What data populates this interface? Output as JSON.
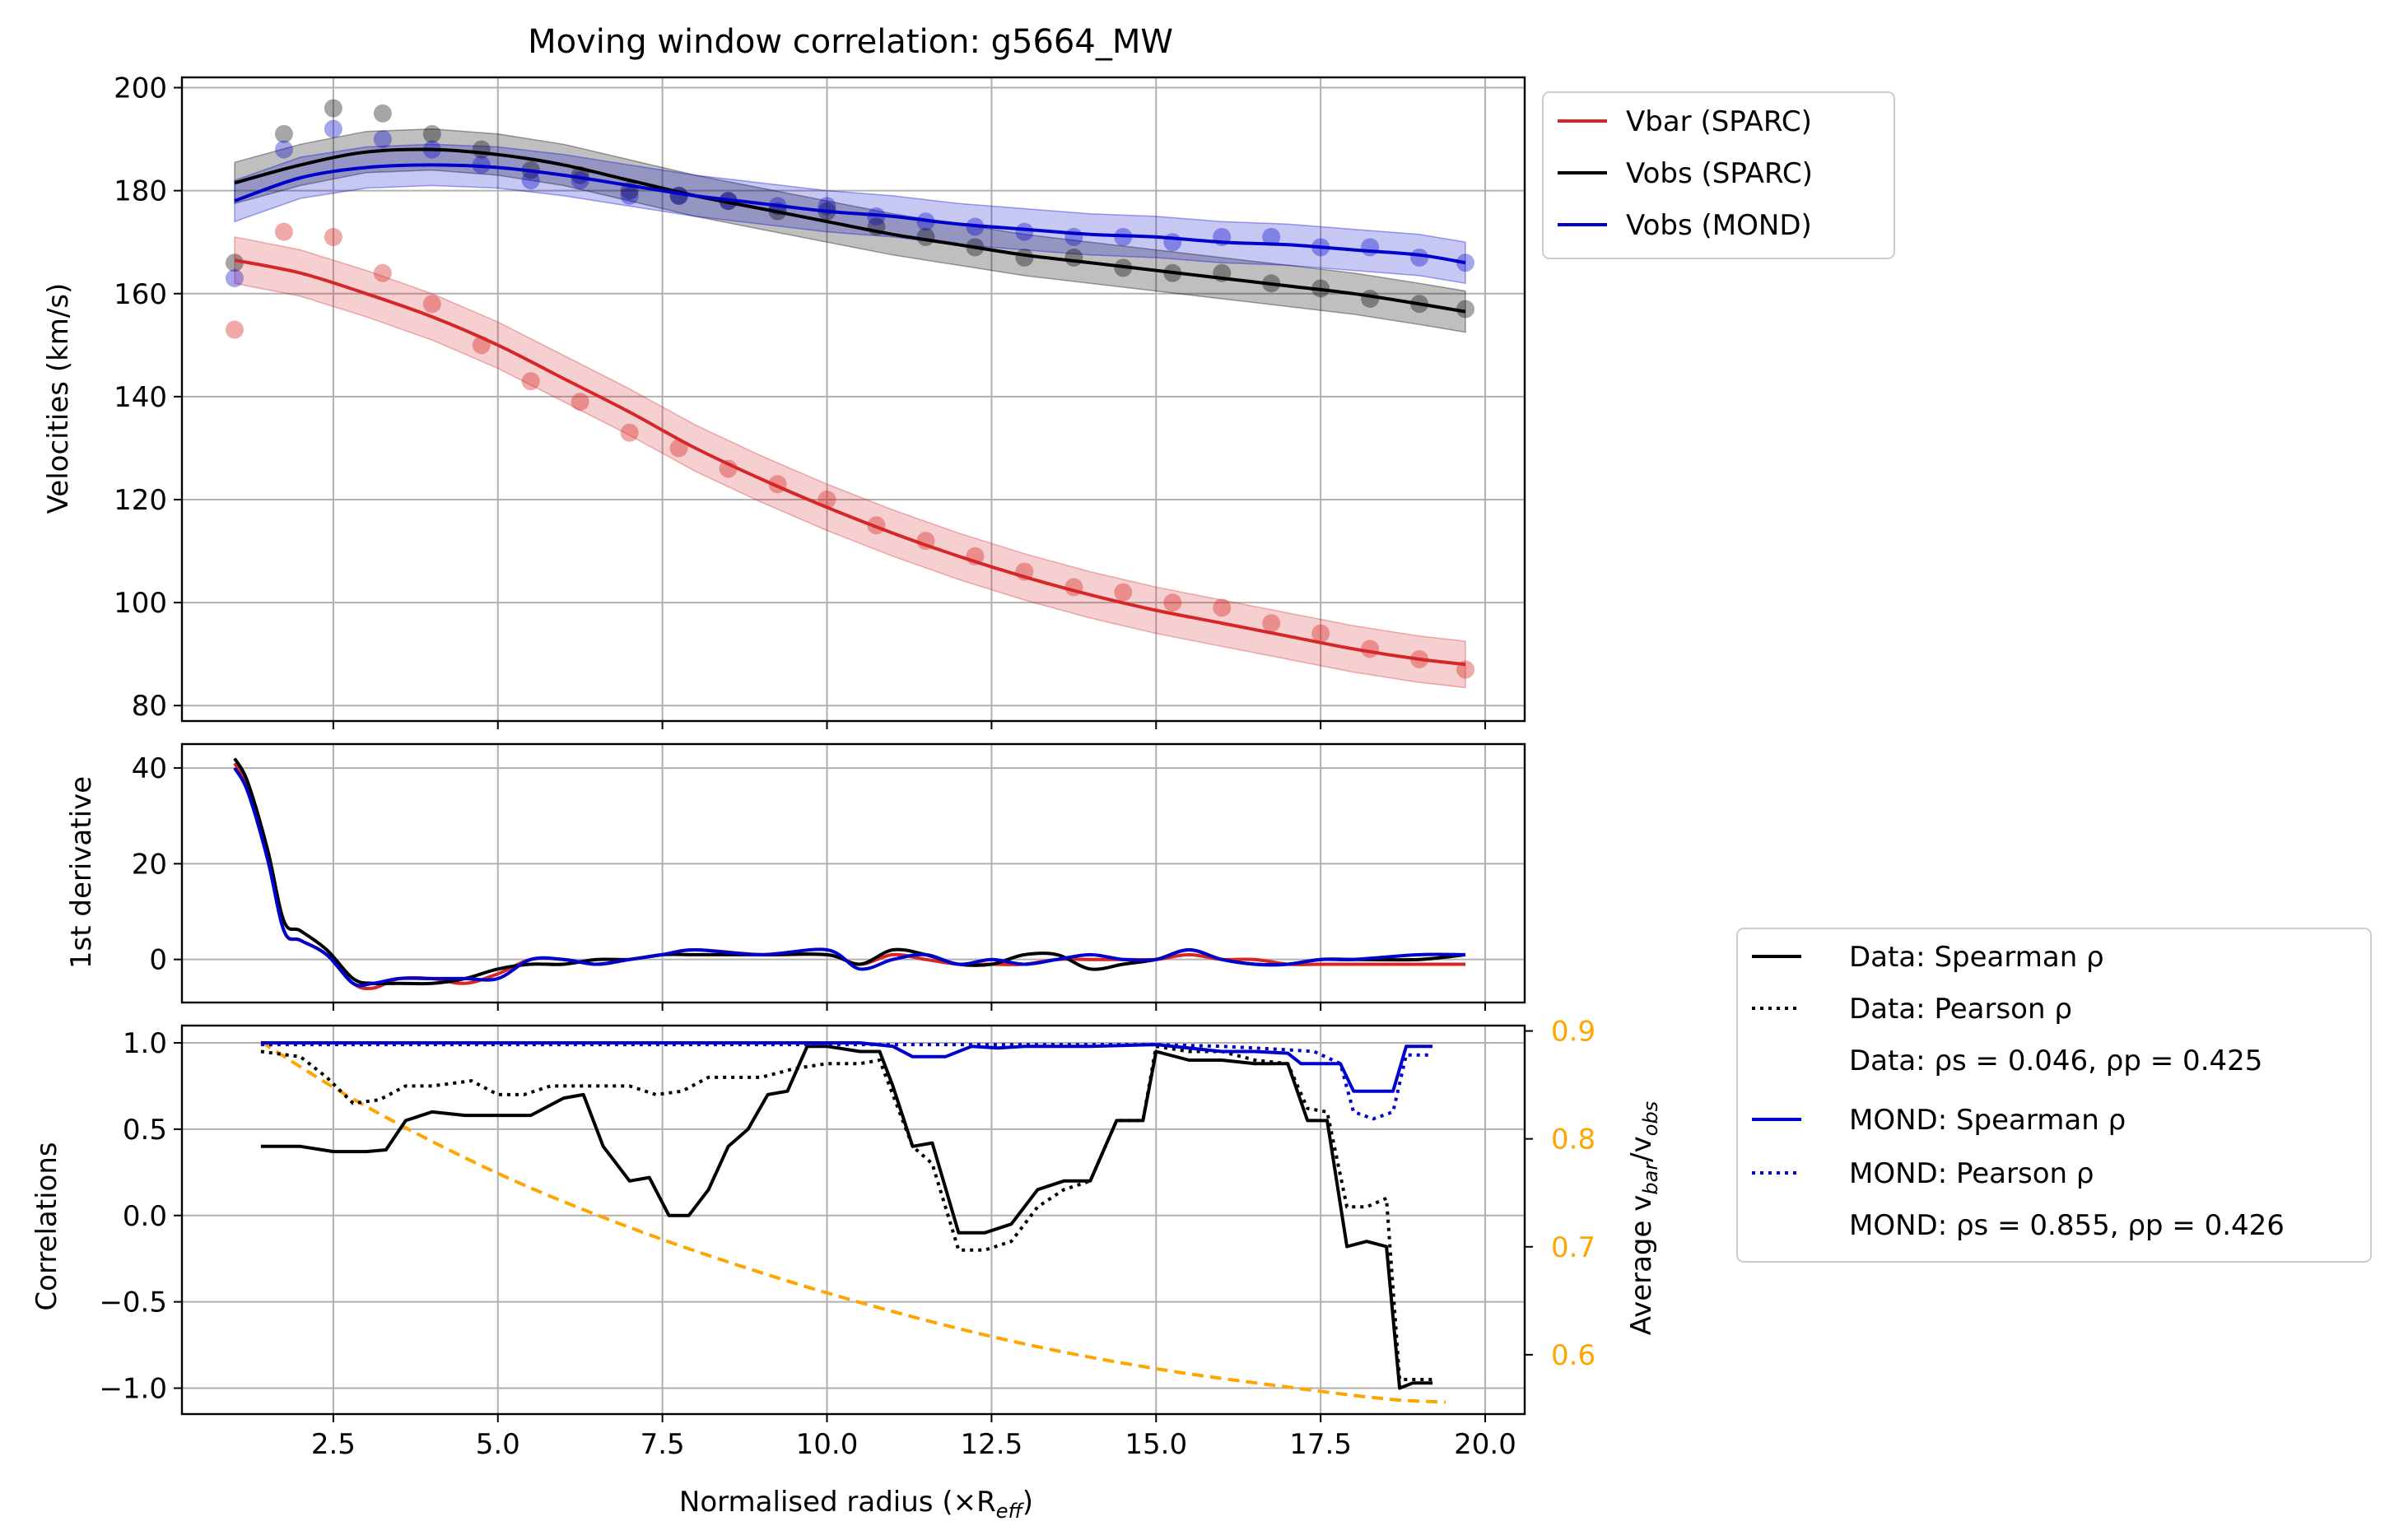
{
  "title": "Moving window correlation: g5664_MW",
  "colors": {
    "vbar": "#d62728",
    "vobs": "#000000",
    "mond": "#0000cc",
    "ratio": "#ffa500",
    "grid": "#b0b0b0"
  },
  "chart_data": [
    {
      "type": "line",
      "panel": "velocities",
      "ylabel": "Velocities (km/s)",
      "xlim": [
        0.2,
        20.6
      ],
      "ylim": [
        77,
        202
      ],
      "yticks": [
        80,
        100,
        120,
        140,
        160,
        180,
        200
      ],
      "yticklabels": [
        "80",
        "100",
        "120",
        "140",
        "160",
        "180",
        "200"
      ],
      "grid": true,
      "legend_position": "outside upper right",
      "legend": [
        "Vbar (SPARC)",
        "Vobs (SPARC)",
        "Vobs (MOND)"
      ],
      "points": {
        "x": [
          1.0,
          1.75,
          2.5,
          3.25,
          4.0,
          4.75,
          5.5,
          6.25,
          7.0,
          7.75,
          8.5,
          9.25,
          10.0,
          10.75,
          11.5,
          12.25,
          13.0,
          13.75,
          14.5,
          15.25,
          16.0,
          16.75,
          17.5,
          18.25,
          19.0,
          19.7
        ],
        "vbar": [
          153,
          172,
          171,
          164,
          158,
          150,
          143,
          139,
          133,
          130,
          126,
          123,
          120,
          115,
          112,
          109,
          106,
          103,
          102,
          100,
          99,
          96,
          94,
          91,
          89,
          87
        ],
        "vobs": [
          166,
          191,
          196,
          195,
          191,
          188,
          184,
          183,
          180,
          179,
          178,
          176,
          176,
          173,
          171,
          169,
          167,
          167,
          165,
          164,
          164,
          162,
          161,
          159,
          158,
          157
        ],
        "mond": [
          163,
          188,
          192,
          190,
          188,
          185,
          182,
          182,
          179,
          179,
          178,
          177,
          177,
          175,
          174,
          173,
          172,
          171,
          171,
          170,
          171,
          171,
          169,
          169,
          167,
          166
        ]
      },
      "series": [
        {
          "name": "Vbar (SPARC)",
          "x": [
            1.0,
            2.0,
            3.0,
            4.0,
            5.0,
            6.0,
            7.0,
            8.0,
            9.0,
            10.0,
            11.0,
            12.0,
            13.0,
            14.0,
            15.0,
            16.0,
            17.0,
            18.0,
            19.0,
            19.7
          ],
          "y": [
            166.5,
            164,
            160,
            155.5,
            150,
            143.5,
            137,
            130,
            124,
            118.5,
            113.5,
            109,
            105,
            101.5,
            98.5,
            96,
            93.5,
            91,
            89,
            88
          ],
          "band": 4.5
        },
        {
          "name": "Vobs (SPARC)",
          "x": [
            1.0,
            2.0,
            3.0,
            4.0,
            5.0,
            6.0,
            7.0,
            8.0,
            9.0,
            10.0,
            11.0,
            12.0,
            13.0,
            14.0,
            15.0,
            16.0,
            17.0,
            18.0,
            19.0,
            19.7
          ],
          "y": [
            181.5,
            185,
            187.5,
            188,
            187,
            185,
            182,
            179,
            176.5,
            174,
            171.5,
            169.5,
            167.5,
            166,
            164.5,
            163,
            161.5,
            160,
            158,
            156.5
          ],
          "band": 4.0
        },
        {
          "name": "Vobs (MOND)",
          "x": [
            1.0,
            2.0,
            3.0,
            4.0,
            5.0,
            6.0,
            7.0,
            8.0,
            9.0,
            10.0,
            11.0,
            12.0,
            13.0,
            14.0,
            15.0,
            16.0,
            17.0,
            18.0,
            19.0,
            19.7
          ],
          "y": [
            178,
            182.5,
            184.5,
            185,
            184.5,
            183,
            181,
            179,
            177.5,
            176,
            175,
            173.5,
            172.5,
            171.5,
            171,
            170,
            169.5,
            168.5,
            167.5,
            166
          ],
          "band": 4.0
        }
      ]
    },
    {
      "type": "line",
      "panel": "derivative",
      "ylabel": "1st derivative",
      "xlim": [
        0.2,
        20.6
      ],
      "ylim": [
        -9,
        45
      ],
      "yticks": [
        0,
        20,
        40
      ],
      "yticklabels": [
        "0",
        "20",
        "40"
      ],
      "grid": true,
      "series": [
        {
          "name": "Vbar (SPARC)",
          "x": [
            1.0,
            1.2,
            1.5,
            1.75,
            2.0,
            2.4,
            2.8,
            3.1,
            3.5,
            4.0,
            4.5,
            5.0,
            5.5,
            6.0,
            6.5,
            7.0,
            7.5,
            8.0,
            9.0,
            10.0,
            10.5,
            11.0,
            11.5,
            12.0,
            12.5,
            13.0,
            13.5,
            14.0,
            14.5,
            15.0,
            15.5,
            16.0,
            16.5,
            17.0,
            17.5,
            18.0,
            19.0,
            19.7
          ],
          "y": [
            41,
            36,
            22,
            6,
            4,
            1,
            -5,
            -6,
            -4,
            -4,
            -5,
            -3,
            0,
            0,
            -1,
            0,
            1,
            2,
            1,
            1,
            -1,
            1,
            0,
            -1,
            -1,
            -1,
            0,
            0,
            0,
            0,
            1,
            0,
            0,
            -1,
            -1,
            -1,
            -1,
            -1
          ]
        },
        {
          "name": "Vobs (SPARC)",
          "x": [
            1.0,
            1.2,
            1.5,
            1.75,
            2.0,
            2.4,
            2.8,
            3.1,
            3.5,
            4.0,
            4.5,
            5.0,
            5.5,
            6.0,
            6.5,
            7.0,
            7.5,
            8.0,
            9.0,
            10.0,
            10.5,
            11.0,
            11.5,
            12.0,
            12.5,
            13.0,
            13.5,
            14.0,
            14.5,
            15.0,
            15.5,
            16.0,
            16.5,
            17.0,
            17.5,
            18.0,
            19.0,
            19.7
          ],
          "y": [
            42,
            37,
            23,
            8,
            6,
            2,
            -4,
            -5,
            -5,
            -5,
            -4,
            -2,
            -1,
            -1,
            0,
            0,
            1,
            1,
            1,
            1,
            -1,
            2,
            1,
            -1,
            -1,
            1,
            1,
            -2,
            -1,
            0,
            2,
            0,
            -1,
            -1,
            0,
            0,
            0,
            1
          ]
        },
        {
          "name": "Vobs (MOND)",
          "x": [
            1.0,
            1.2,
            1.5,
            1.75,
            2.0,
            2.4,
            2.8,
            3.1,
            3.5,
            4.0,
            4.5,
            5.0,
            5.5,
            6.0,
            6.5,
            7.0,
            7.5,
            8.0,
            9.0,
            10.0,
            10.5,
            11.0,
            11.5,
            12.0,
            12.5,
            13.0,
            13.5,
            14.0,
            14.5,
            15.0,
            15.5,
            16.0,
            16.5,
            17.0,
            17.5,
            18.0,
            19.0,
            19.7
          ],
          "y": [
            40,
            35,
            21,
            6,
            4,
            1,
            -5,
            -5,
            -4,
            -4,
            -4,
            -4,
            0,
            0,
            -1,
            0,
            1,
            2,
            1,
            2,
            -2,
            0,
            1,
            -1,
            0,
            -1,
            0,
            1,
            0,
            0,
            2,
            0,
            -1,
            -1,
            0,
            0,
            1,
            1
          ]
        }
      ]
    },
    {
      "type": "line",
      "panel": "correlations",
      "xlabel": "Normalised radius (×R",
      "xlabel_sub": "eff",
      "xlabel_tail": ")",
      "ylabel": "Correlations",
      "ylabel_right": "Average v",
      "ylabel_right_sub1": "bar",
      "ylabel_right_mid": "/v",
      "ylabel_right_sub2": "obs",
      "xlim": [
        0.2,
        20.6
      ],
      "ylim": [
        -1.15,
        1.1
      ],
      "y2lim": [
        0.545,
        0.905
      ],
      "xticks": [
        2.5,
        5.0,
        7.5,
        10.0,
        12.5,
        15.0,
        17.5,
        20.0
      ],
      "xticklabels": [
        "2.5",
        "5.0",
        "7.5",
        "10.0",
        "12.5",
        "15.0",
        "17.5",
        "20.0"
      ],
      "yticks": [
        -1.0,
        -0.5,
        0.0,
        0.5,
        1.0
      ],
      "yticklabels": [
        "−1.0",
        "−0.5",
        "0.0",
        "0.5",
        "1.0"
      ],
      "y2ticks": [
        0.6,
        0.7,
        0.8,
        0.9
      ],
      "y2ticklabels": [
        "0.6",
        "0.7",
        "0.8",
        "0.9"
      ],
      "grid": true,
      "legend_position": "outside lower right",
      "legend": [
        {
          "label": "Data: Spearman ρ",
          "style": "solid",
          "color": "#000000"
        },
        {
          "label": "Data: Pearson ρ",
          "style": "dotted",
          "color": "#000000"
        },
        {
          "label": "Data: ρs = 0.046, ρp = 0.425",
          "style": "none",
          "color": "#000000"
        },
        {
          "label": "MOND: Spearman ρ",
          "style": "solid",
          "color": "#0000cc"
        },
        {
          "label": "MOND: Pearson ρ",
          "style": "dotted",
          "color": "#0000cc"
        },
        {
          "label": "MOND: ρs = 0.855, ρp = 0.426",
          "style": "none",
          "color": "#000000"
        }
      ],
      "series": [
        {
          "name": "Data: Spearman ρ",
          "x": [
            1.4,
            2.0,
            2.5,
            3.0,
            3.3,
            3.6,
            4.0,
            4.5,
            5.0,
            5.5,
            6.0,
            6.3,
            6.6,
            7.0,
            7.3,
            7.6,
            7.9,
            8.2,
            8.5,
            8.8,
            9.1,
            9.4,
            9.7,
            10.0,
            10.5,
            10.8,
            11.0,
            11.3,
            11.6,
            12.0,
            12.4,
            12.8,
            13.2,
            13.6,
            14.0,
            14.4,
            14.8,
            15.0,
            15.5,
            16.0,
            16.5,
            17.0,
            17.3,
            17.6,
            17.9,
            18.2,
            18.5,
            18.7,
            18.9,
            19.2
          ],
          "y": [
            0.4,
            0.4,
            0.37,
            0.37,
            0.38,
            0.55,
            0.6,
            0.58,
            0.58,
            0.58,
            0.68,
            0.7,
            0.4,
            0.2,
            0.22,
            0.0,
            0.0,
            0.15,
            0.4,
            0.5,
            0.7,
            0.72,
            0.98,
            0.98,
            0.95,
            0.95,
            0.75,
            0.4,
            0.42,
            -0.1,
            -0.1,
            -0.05,
            0.15,
            0.2,
            0.2,
            0.55,
            0.55,
            0.95,
            0.9,
            0.9,
            0.88,
            0.88,
            0.55,
            0.55,
            -0.18,
            -0.15,
            -0.18,
            -1.0,
            -0.97,
            -0.97
          ]
        },
        {
          "name": "Data: Pearson ρ",
          "x": [
            1.4,
            2.0,
            2.4,
            2.8,
            3.2,
            3.6,
            4.0,
            4.6,
            5.0,
            5.4,
            5.8,
            6.2,
            6.6,
            7.0,
            7.4,
            7.8,
            8.2,
            8.6,
            9.0,
            9.5,
            10.0,
            10.5,
            10.8,
            11.0,
            11.3,
            11.6,
            12.0,
            12.4,
            12.8,
            13.2,
            13.6,
            14.0,
            14.4,
            14.8,
            15.0,
            15.5,
            16.0,
            16.5,
            17.0,
            17.3,
            17.6,
            17.9,
            18.2,
            18.5,
            18.7,
            18.9,
            19.2
          ],
          "y": [
            0.95,
            0.92,
            0.8,
            0.65,
            0.67,
            0.75,
            0.75,
            0.78,
            0.7,
            0.7,
            0.75,
            0.75,
            0.75,
            0.75,
            0.7,
            0.72,
            0.8,
            0.8,
            0.8,
            0.85,
            0.88,
            0.88,
            0.9,
            0.7,
            0.4,
            0.3,
            -0.2,
            -0.2,
            -0.15,
            0.05,
            0.15,
            0.2,
            0.55,
            0.55,
            0.98,
            0.95,
            0.95,
            0.9,
            0.88,
            0.62,
            0.6,
            0.05,
            0.05,
            0.1,
            -0.95,
            -0.95,
            -0.95
          ]
        },
        {
          "name": "MOND: Spearman ρ",
          "x": [
            1.4,
            2.0,
            4.0,
            6.0,
            8.0,
            10.0,
            10.5,
            11.0,
            11.3,
            11.8,
            12.2,
            12.6,
            13.0,
            14.0,
            15.0,
            16.0,
            16.5,
            17.0,
            17.2,
            17.5,
            17.8,
            18.0,
            18.3,
            18.6,
            18.8,
            19.2
          ],
          "y": [
            1.0,
            1.0,
            1.0,
            1.0,
            1.0,
            1.0,
            1.0,
            0.98,
            0.92,
            0.92,
            0.98,
            0.97,
            0.98,
            0.98,
            0.99,
            0.95,
            0.95,
            0.94,
            0.88,
            0.88,
            0.88,
            0.72,
            0.72,
            0.72,
            0.98,
            0.98
          ]
        },
        {
          "name": "MOND: Pearson ρ",
          "x": [
            1.4,
            2.0,
            4.0,
            6.0,
            8.0,
            10.0,
            11.0,
            12.0,
            13.0,
            14.0,
            15.0,
            16.0,
            17.0,
            17.4,
            17.8,
            18.0,
            18.3,
            18.6,
            18.8,
            19.2
          ],
          "y": [
            0.99,
            0.99,
            0.99,
            0.99,
            0.99,
            0.99,
            0.99,
            0.99,
            0.99,
            0.99,
            0.99,
            0.98,
            0.96,
            0.95,
            0.88,
            0.6,
            0.56,
            0.6,
            0.93,
            0.93
          ]
        },
        {
          "name": "Average vbar/vobs",
          "axis": "right",
          "x": [
            1.4,
            3.0,
            5.0,
            7.0,
            9.0,
            11.0,
            13.0,
            15.0,
            17.0,
            18.5,
            19.4
          ],
          "y": [
            0.89,
            0.83,
            0.768,
            0.718,
            0.676,
            0.64,
            0.61,
            0.587,
            0.57,
            0.559,
            0.556
          ]
        }
      ]
    }
  ]
}
